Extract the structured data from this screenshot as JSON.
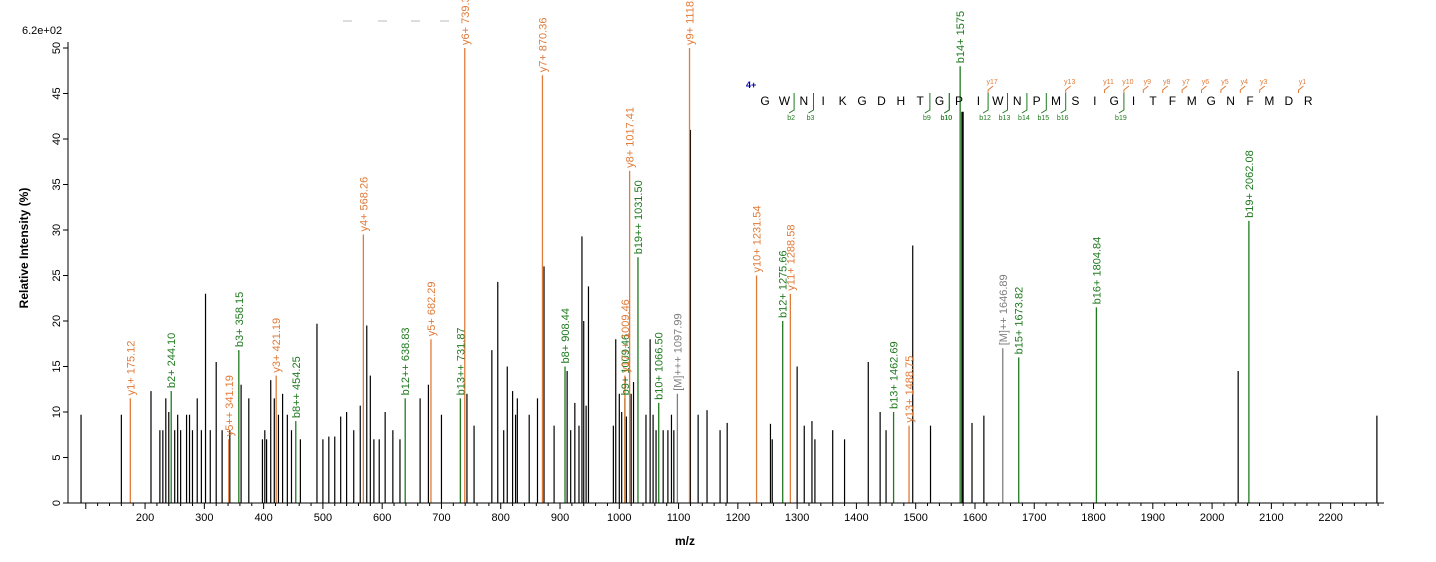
{
  "chart_data": {
    "type": "bar",
    "xlabel": "m/z",
    "ylabel": "Relative   Intensity (%)",
    "ymax_label": "6.2e+02",
    "xlim": [
      70,
      2290
    ],
    "ylim": [
      0,
      50
    ],
    "x_ticks": [
      200,
      300,
      400,
      500,
      600,
      700,
      800,
      900,
      1000,
      1100,
      1200,
      1300,
      1400,
      1500,
      1600,
      1700,
      1800,
      1900,
      2000,
      2100,
      2200
    ],
    "y_ticks": [
      0,
      5,
      10,
      15,
      20,
      25,
      30,
      35,
      40,
      45,
      50
    ],
    "colors": {
      "y_ion": "#e07b39",
      "b_ion": "#1f7a1f",
      "precursor": "#7f7f7f",
      "noise": "#000000",
      "charge": "#0000aa"
    },
    "annotated_peaks": [
      {
        "mz": 175.12,
        "intensity": 11.5,
        "label": "y1+ 175.12",
        "ion": "y"
      },
      {
        "mz": 244.1,
        "intensity": 12.3,
        "label": "b2+ 244.10",
        "ion": "b"
      },
      {
        "mz": 341.19,
        "intensity": 7.0,
        "label": "y5++ 341.19",
        "ion": "y"
      },
      {
        "mz": 358.15,
        "intensity": 16.8,
        "label": "b3+ 358.15",
        "ion": "b"
      },
      {
        "mz": 421.19,
        "intensity": 14.0,
        "label": "y3+ 421.19",
        "ion": "y"
      },
      {
        "mz": 454.25,
        "intensity": 9.0,
        "label": "b8++ 454.25",
        "ion": "b"
      },
      {
        "mz": 568.26,
        "intensity": 29.5,
        "label": "y4+ 568.26",
        "ion": "y"
      },
      {
        "mz": 638.83,
        "intensity": 11.5,
        "label": "b12++ 638.83",
        "ion": "b"
      },
      {
        "mz": 682.29,
        "intensity": 18.0,
        "label": "y5+ 682.29",
        "ion": "y"
      },
      {
        "mz": 731.87,
        "intensity": 11.5,
        "label": "b13++ 731.87",
        "ion": "b"
      },
      {
        "mz": 739.32,
        "intensity": 50.0,
        "label": "y6+ 739.32",
        "ion": "y"
      },
      {
        "mz": 870.36,
        "intensity": 47.0,
        "label": "y7+ 870.36",
        "ion": "y"
      },
      {
        "mz": 908.44,
        "intensity": 15.0,
        "label": "b8+ 908.44",
        "ion": "b"
      },
      {
        "mz": 1009.46,
        "intensity": 11.5,
        "label": "b9+ 1009.46",
        "ion": "b"
      },
      {
        "mz": 1009.46,
        "intensity": 14.0,
        "label": "y17++ 1009.46",
        "ion": "y"
      },
      {
        "mz": 1017.41,
        "intensity": 36.5,
        "label": "y8+ 1017.41",
        "ion": "y"
      },
      {
        "mz": 1031.5,
        "intensity": 27.0,
        "label": "b19++ 1031.50",
        "ion": "b"
      },
      {
        "mz": 1066.5,
        "intensity": 11.0,
        "label": "b10+ 1066.50",
        "ion": "b"
      },
      {
        "mz": 1097.99,
        "intensity": 12.0,
        "label": "[M]+++ 1097.99",
        "ion": "p"
      },
      {
        "mz": 1118.46,
        "intensity": 50.0,
        "label": "y9+ 1118.46",
        "ion": "y"
      },
      {
        "mz": 1231.54,
        "intensity": 25.0,
        "label": "y10+ 1231.54",
        "ion": "y"
      },
      {
        "mz": 1275.66,
        "intensity": 20.0,
        "label": "b12+ 1275.66",
        "ion": "b"
      },
      {
        "mz": 1288.58,
        "intensity": 23.0,
        "label": "y11+ 1288.58",
        "ion": "y"
      },
      {
        "mz": 1462.69,
        "intensity": 10.0,
        "label": "b13+ 1462.69",
        "ion": "b"
      },
      {
        "mz": 1488.75,
        "intensity": 8.5,
        "label": "y13+ 1488.75",
        "ion": "y"
      },
      {
        "mz": 1575.0,
        "intensity": 48.0,
        "label": "b14+ 1575",
        "ion": "b"
      },
      {
        "mz": 1646.89,
        "intensity": 17.0,
        "label": "[M]++ 1646.89",
        "ion": "p"
      },
      {
        "mz": 1673.82,
        "intensity": 16.0,
        "label": "b15+ 1673.82",
        "ion": "b"
      },
      {
        "mz": 1804.84,
        "intensity": 21.5,
        "label": "b16+ 1804.84",
        "ion": "b"
      },
      {
        "mz": 2062.08,
        "intensity": 31.0,
        "label": "b19+ 2062.08",
        "ion": "b"
      }
    ],
    "unlabeled_peaks": [
      [
        92,
        9.7
      ],
      [
        160,
        9.7
      ],
      [
        210,
        12.3
      ],
      [
        225,
        8.0
      ],
      [
        230,
        8.0
      ],
      [
        235,
        11.5
      ],
      [
        240,
        10.0
      ],
      [
        250,
        8.0
      ],
      [
        255,
        9.7
      ],
      [
        260,
        8.0
      ],
      [
        270,
        9.7
      ],
      [
        275,
        9.7
      ],
      [
        280,
        8.0
      ],
      [
        288,
        11.5
      ],
      [
        295,
        8.0
      ],
      [
        302,
        23.0
      ],
      [
        310,
        8.0
      ],
      [
        320,
        15.5
      ],
      [
        330,
        8.0
      ],
      [
        343,
        8.0
      ],
      [
        362,
        13.0
      ],
      [
        375,
        11.5
      ],
      [
        398,
        7.0
      ],
      [
        402,
        8.0
      ],
      [
        405,
        7.0
      ],
      [
        412,
        13.5
      ],
      [
        418,
        11.5
      ],
      [
        425,
        9.7
      ],
      [
        432,
        12.0
      ],
      [
        440,
        9.7
      ],
      [
        447,
        8.0
      ],
      [
        462,
        7.0
      ],
      [
        490,
        19.7
      ],
      [
        500,
        7.0
      ],
      [
        510,
        7.3
      ],
      [
        520,
        7.3
      ],
      [
        530,
        9.5
      ],
      [
        540,
        10.0
      ],
      [
        552,
        8.0
      ],
      [
        563,
        10.7
      ],
      [
        574,
        19.5
      ],
      [
        580,
        14.0
      ],
      [
        586,
        7.0
      ],
      [
        595,
        7.0
      ],
      [
        605,
        10.0
      ],
      [
        618,
        8.0
      ],
      [
        630,
        7.0
      ],
      [
        664,
        11.5
      ],
      [
        678,
        13.0
      ],
      [
        700,
        9.7
      ],
      [
        743,
        12.0
      ],
      [
        755,
        8.5
      ],
      [
        785,
        16.8
      ],
      [
        795,
        24.3
      ],
      [
        805,
        8.0
      ],
      [
        811,
        15.0
      ],
      [
        820,
        12.3
      ],
      [
        825,
        9.7
      ],
      [
        828,
        11.5
      ],
      [
        848,
        9.7
      ],
      [
        862,
        11.5
      ],
      [
        873,
        26.0
      ],
      [
        890,
        8.5
      ],
      [
        912,
        14.5
      ],
      [
        918,
        8.0
      ],
      [
        925,
        11.0
      ],
      [
        932,
        8.5
      ],
      [
        937,
        29.3
      ],
      [
        940,
        20.0
      ],
      [
        944,
        10.7
      ],
      [
        948,
        23.8
      ],
      [
        990,
        8.5
      ],
      [
        994,
        18.0
      ],
      [
        1000,
        12.0
      ],
      [
        1004,
        10.0
      ],
      [
        1012,
        9.5
      ],
      [
        1020,
        12.0
      ],
      [
        1024,
        13.3
      ],
      [
        1045,
        9.7
      ],
      [
        1052,
        18.0
      ],
      [
        1057,
        9.7
      ],
      [
        1062,
        8.0
      ],
      [
        1074,
        8.0
      ],
      [
        1082,
        8.0
      ],
      [
        1088,
        9.7
      ],
      [
        1092,
        8.0
      ],
      [
        1120,
        41.0
      ],
      [
        1133,
        9.7
      ],
      [
        1148,
        10.2
      ],
      [
        1170,
        8.0
      ],
      [
        1182,
        8.8
      ],
      [
        1255,
        8.7
      ],
      [
        1258,
        7.0
      ],
      [
        1300,
        15.0
      ],
      [
        1312,
        8.5
      ],
      [
        1325,
        9.0
      ],
      [
        1330,
        7.0
      ],
      [
        1360,
        8.0
      ],
      [
        1380,
        7.0
      ],
      [
        1420,
        15.5
      ],
      [
        1440,
        10.0
      ],
      [
        1450,
        8.0
      ],
      [
        1495,
        28.3
      ],
      [
        1525,
        8.5
      ],
      [
        1578,
        43.0
      ],
      [
        1580,
        43.0
      ],
      [
        1595,
        8.8
      ],
      [
        1615,
        9.6
      ],
      [
        2044,
        14.5
      ],
      [
        2278,
        9.6
      ]
    ],
    "sequence": {
      "charge_label": "4+",
      "residues": [
        "G",
        "W",
        "N",
        "I",
        "K",
        "G",
        "D",
        "H",
        "T",
        "G",
        "P",
        "I",
        "W",
        "N",
        "P",
        "M",
        "S",
        "I",
        "G",
        "I",
        "T",
        "F",
        "M",
        "G",
        "N",
        "F",
        "M",
        "D",
        "R"
      ],
      "b_ions": [
        {
          "label": "b2",
          "after": 2
        },
        {
          "label": "b3",
          "after": 3
        },
        {
          "label": "b9",
          "after": 9
        },
        {
          "label": "b10",
          "after": 10
        },
        {
          "label": "b10",
          "after": 10
        },
        {
          "label": "b12",
          "after": 12
        },
        {
          "label": "b13",
          "after": 13
        },
        {
          "label": "b14",
          "after": 14
        },
        {
          "label": "b15",
          "after": 15
        },
        {
          "label": "b16",
          "after": 16
        },
        {
          "label": "b19",
          "after": 19
        }
      ],
      "y_ions": [
        {
          "label": "y17",
          "after": 12
        },
        {
          "label": "y13",
          "after": 16
        },
        {
          "label": "y11",
          "after": 18
        },
        {
          "label": "y10",
          "after": 19
        },
        {
          "label": "y9",
          "after": 20
        },
        {
          "label": "y8",
          "after": 21
        },
        {
          "label": "y7",
          "after": 22
        },
        {
          "label": "y6",
          "after": 23
        },
        {
          "label": "y5",
          "after": 24
        },
        {
          "label": "y4",
          "after": 25
        },
        {
          "label": "y3",
          "after": 26
        },
        {
          "label": "y1",
          "after": 28
        }
      ]
    }
  }
}
